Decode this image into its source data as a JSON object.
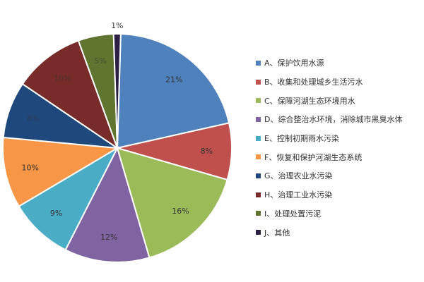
{
  "chart_data": {
    "type": "pie",
    "slices": [
      {
        "label": "A、保护饮用水源",
        "value": 21,
        "value_label": "21%",
        "color": "#4F81BD"
      },
      {
        "label": "B、收集和处理城乡生活污水",
        "value": 8,
        "value_label": "8%",
        "color": "#C0504D"
      },
      {
        "label": "C、保障河湖生态环境用水",
        "value": 16,
        "value_label": "16%",
        "color": "#9BBB59"
      },
      {
        "label": "D、综合整治水环境，消除城市黑臭水体",
        "value": 12,
        "value_label": "12%",
        "color": "#8064A2"
      },
      {
        "label": "E、控制初期雨水污染",
        "value": 9,
        "value_label": "9%",
        "color": "#4BACC6"
      },
      {
        "label": "F、恢复和保护河湖生态系统",
        "value": 10,
        "value_label": "10%",
        "color": "#F79646"
      },
      {
        "label": "G、治理农业水污染",
        "value": 8,
        "value_label": "8%",
        "color": "#1F497D"
      },
      {
        "label": "H、治理工业水污染",
        "value": 10,
        "value_label": "10%",
        "color": "#772C2A"
      },
      {
        "label": "I、处理处置污泥",
        "value": 5,
        "value_label": "5%",
        "color": "#5F7530"
      },
      {
        "label": "J、其他",
        "value": 1,
        "value_label": "1%",
        "color": "#2C1F44"
      }
    ],
    "legend_position": "right"
  }
}
